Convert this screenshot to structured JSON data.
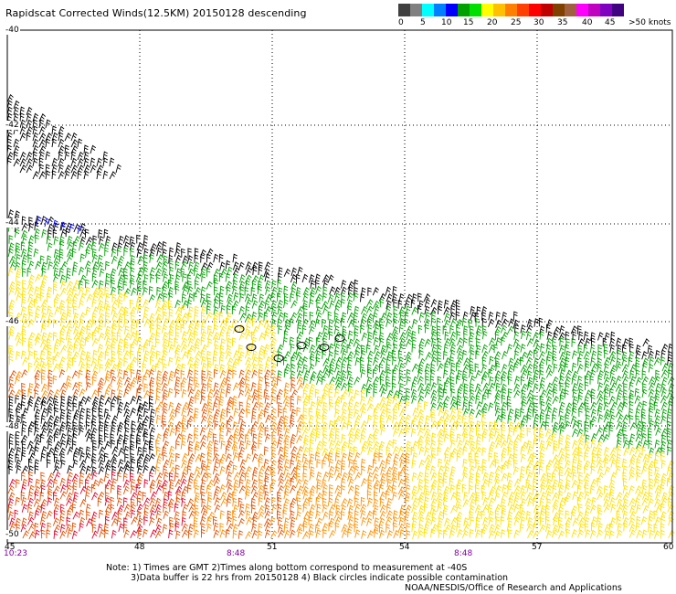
{
  "header": {
    "title": "Rapidscat Corrected Winds(12.5KM) 20150128 descending"
  },
  "legend": {
    "colors": [
      "#404040",
      "#808080",
      "#00ffff",
      "#0080ff",
      "#0000ff",
      "#00a000",
      "#00e000",
      "#ffff00",
      "#ffc000",
      "#ff8000",
      "#ff4000",
      "#ff0000",
      "#c00000",
      "#804000",
      "#a06040",
      "#ff00ff",
      "#c000c0",
      "#8000c0",
      "#400080"
    ],
    "labels": [
      "0",
      "5",
      "10",
      "15",
      "20",
      "25",
      "30",
      "35",
      "40",
      "45",
      ">50 knots"
    ],
    "label_colors": [
      "#000000",
      "#000000",
      "#000000",
      "#000000",
      "#000000",
      "#000000",
      "#000000",
      "#000000",
      "#000000",
      "#000000",
      "#000000"
    ]
  },
  "axes": {
    "lat_labels": [
      "-40",
      "-42",
      "-44",
      "-46",
      "-48",
      "-50"
    ],
    "lon_labels": [
      "45",
      "48",
      "51",
      "54",
      "57",
      "60"
    ],
    "time_labels": [
      "10:23",
      "8:48",
      "8:48"
    ]
  },
  "notes": {
    "line1": "Note: 1) Times are GMT 2)Times along bottom correspond to measurement at -40S",
    "line2": "3)Data buffer is 22 hrs from 20150128 4) Black circles indicate possible contamination",
    "line3": "NOAA/NESDIS/Office of Research and Applications"
  },
  "colors": {
    "black": "#000000",
    "blue": "#0000ff",
    "green": "#00a000",
    "yellow": "#ffe000",
    "orange": "#ff9000",
    "dark_orange": "#e05000",
    "red": "#e00030"
  }
}
